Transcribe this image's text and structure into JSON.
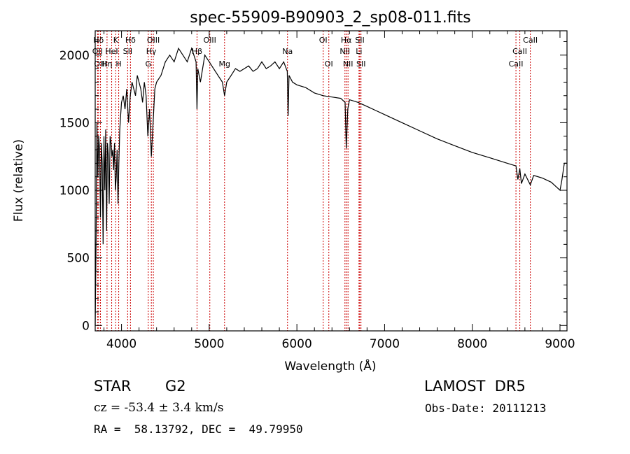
{
  "chart_data": {
    "type": "line",
    "title": "spec-55909-B90903_2_sp08-011.fits",
    "xlabel": "Wavelength (Å)",
    "ylabel": "Flux (relative)",
    "xlim": [
      3700,
      9080
    ],
    "ylim": [
      -40,
      2180
    ],
    "xticks": [
      4000,
      5000,
      6000,
      7000,
      8000,
      9000
    ],
    "yticks": [
      0,
      500,
      1000,
      1500,
      2000
    ],
    "series": [
      {
        "x": [
          3700,
          3710,
          3720,
          3730,
          3740,
          3750,
          3760,
          3770,
          3780,
          3790,
          3800,
          3810,
          3820,
          3830,
          3840,
          3850,
          3860,
          3870,
          3880,
          3890,
          3900,
          3910,
          3920,
          3930,
          3940,
          3950,
          3960,
          3970,
          3980,
          3990,
          4000,
          4020,
          4040,
          4060,
          4080,
          4100,
          4120,
          4140,
          4160,
          4180,
          4200,
          4220,
          4240,
          4260,
          4280,
          4300,
          4320,
          4340,
          4360,
          4380,
          4400,
          4450,
          4500,
          4550,
          4600,
          4650,
          4700,
          4750,
          4800,
          4850,
          4861,
          4870,
          4900,
          4950,
          5000,
          5050,
          5100,
          5150,
          5175,
          5200,
          5250,
          5300,
          5350,
          5400,
          5450,
          5500,
          5550,
          5600,
          5650,
          5700,
          5750,
          5800,
          5850,
          5890,
          5900,
          5910,
          5950,
          6000,
          6100,
          6200,
          6300,
          6400,
          6500,
          6550,
          6563,
          6580,
          6600,
          6700,
          6800,
          6900,
          7000,
          7200,
          7400,
          7600,
          7800,
          8000,
          8200,
          8400,
          8498,
          8520,
          8542,
          8560,
          8600,
          8662,
          8700,
          8800,
          8900,
          9000,
          9020,
          9050,
          9080
        ],
        "y": [
          0,
          650,
          1500,
          1100,
          1400,
          1300,
          800,
          1350,
          1200,
          600,
          1400,
          1000,
          1450,
          700,
          1350,
          1250,
          900,
          1400,
          1350,
          1250,
          1300,
          1150,
          1350,
          1000,
          1100,
          1300,
          900,
          1200,
          1450,
          1550,
          1650,
          1700,
          1600,
          1750,
          1500,
          1700,
          1800,
          1750,
          1700,
          1850,
          1800,
          1750,
          1650,
          1800,
          1700,
          1400,
          1600,
          1250,
          1500,
          1750,
          1800,
          1850,
          1950,
          2000,
          1950,
          2050,
          2000,
          1950,
          2050,
          1950,
          1600,
          1900,
          1800,
          2000,
          1950,
          1900,
          1850,
          1800,
          1700,
          1800,
          1850,
          1900,
          1880,
          1900,
          1920,
          1880,
          1900,
          1950,
          1900,
          1920,
          1950,
          1900,
          1950,
          1880,
          1550,
          1850,
          1800,
          1780,
          1760,
          1720,
          1700,
          1690,
          1680,
          1650,
          1310,
          1600,
          1670,
          1650,
          1620,
          1590,
          1560,
          1500,
          1440,
          1380,
          1330,
          1280,
          1240,
          1200,
          1180,
          1080,
          1160,
          1050,
          1120,
          1040,
          1110,
          1090,
          1060,
          1000,
          1070,
          1200,
          1200
        ]
      }
    ],
    "spectral_lines": [
      {
        "label": "Hδ",
        "x": 3738,
        "row": 0
      },
      {
        "label": "K",
        "x": 3934,
        "row": 0
      },
      {
        "label": "Hδ",
        "x": 4102,
        "row": 0
      },
      {
        "label": "OIII",
        "x": 4363,
        "row": 0
      },
      {
        "label": "OIII",
        "x": 5007,
        "row": 0
      },
      {
        "label": "OI",
        "x": 6300,
        "row": 0
      },
      {
        "label": "Hα",
        "x": 6563,
        "row": 0
      },
      {
        "label": "SII",
        "x": 6717,
        "row": 0
      },
      {
        "label": "CaII",
        "x": 8662,
        "row": 0
      },
      {
        "label": "OII",
        "x": 3727,
        "row": 1
      },
      {
        "label": "HeI",
        "x": 3888,
        "row": 1
      },
      {
        "label": "SII",
        "x": 4070,
        "row": 1
      },
      {
        "label": "Hγ",
        "x": 4340,
        "row": 1
      },
      {
        "label": "Hβ",
        "x": 4861,
        "row": 1
      },
      {
        "label": "Na",
        "x": 5893,
        "row": 1
      },
      {
        "label": "NII",
        "x": 6548,
        "row": 1
      },
      {
        "label": "Li",
        "x": 6708,
        "row": 1
      },
      {
        "label": "CaII",
        "x": 8542,
        "row": 1
      },
      {
        "label": "OIII",
        "x": 3760,
        "row": 2
      },
      {
        "label": "Hη",
        "x": 3835,
        "row": 2
      },
      {
        "label": "H",
        "x": 3968,
        "row": 2
      },
      {
        "label": "G",
        "x": 4305,
        "row": 2
      },
      {
        "label": "Mg",
        "x": 5175,
        "row": 2
      },
      {
        "label": "OI",
        "x": 6364,
        "row": 2
      },
      {
        "label": "NII",
        "x": 6583,
        "row": 2
      },
      {
        "label": "SII",
        "x": 6731,
        "row": 2
      },
      {
        "label": "CaII",
        "x": 8498,
        "row": 2
      }
    ],
    "grid": false,
    "line_color": "#000000",
    "marker_line_color": "#cc0000"
  },
  "info": {
    "object_class": "STAR",
    "subclass": "G2",
    "survey": "LAMOST  DR5",
    "redshift": "cz = -53.4 ± 3.4 km/s",
    "obs_date": "Obs-Date: 20111213",
    "coords": "RA =  58.13792, DEC =  49.79950"
  }
}
